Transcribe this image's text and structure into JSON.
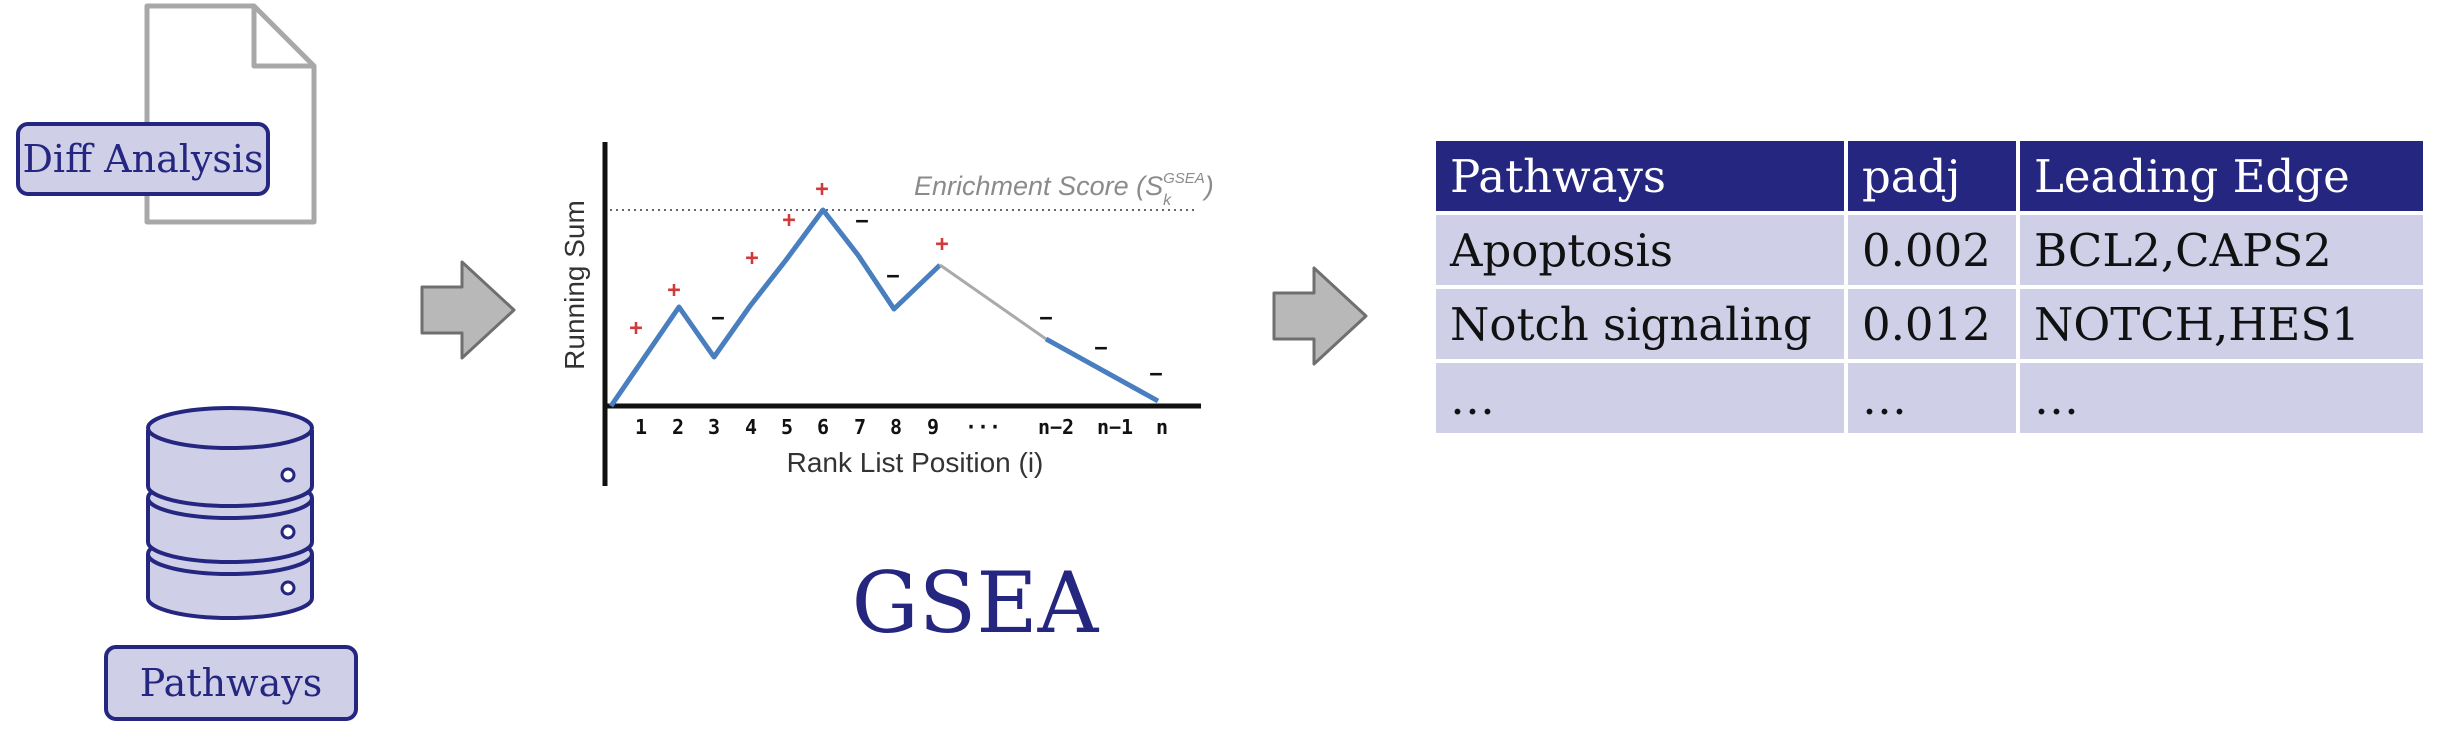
{
  "left": {
    "diff_label": "Diff Analysis",
    "pathways_label": "Pathways"
  },
  "plot": {
    "enrichment_label": "Enrichment Score (S",
    "enrichment_sub": "k",
    "enrichment_sup": "GSEA",
    "enrichment_close": ")",
    "ylabel": "Running Sum",
    "xlabel": "Rank List Position (i)",
    "ticks": [
      "1",
      "2",
      "3",
      "4",
      "5",
      "6",
      "7",
      "8",
      "9",
      "···",
      "n−2",
      "n−1",
      "n"
    ],
    "signs": [
      "+",
      "+",
      "−",
      "+",
      "+",
      "+",
      "−",
      "−",
      "+",
      "−",
      "−",
      "−"
    ]
  },
  "title": "GSEA",
  "table": {
    "headers": [
      "Pathways",
      "padj",
      "Leading Edge"
    ],
    "rows": [
      [
        "Apoptosis",
        "0.002",
        "BCL2,CAPS2"
      ],
      [
        "Notch signaling",
        "0.012",
        "NOTCH,HES1"
      ],
      [
        "…",
        "…",
        "…"
      ]
    ]
  },
  "colors": {
    "navy": "#25267f",
    "lavender": "#cfd0e8",
    "line_blue": "#4a7fbf",
    "plus_red": "#d03a3a",
    "arrow_gray": "#b8b8b8"
  }
}
